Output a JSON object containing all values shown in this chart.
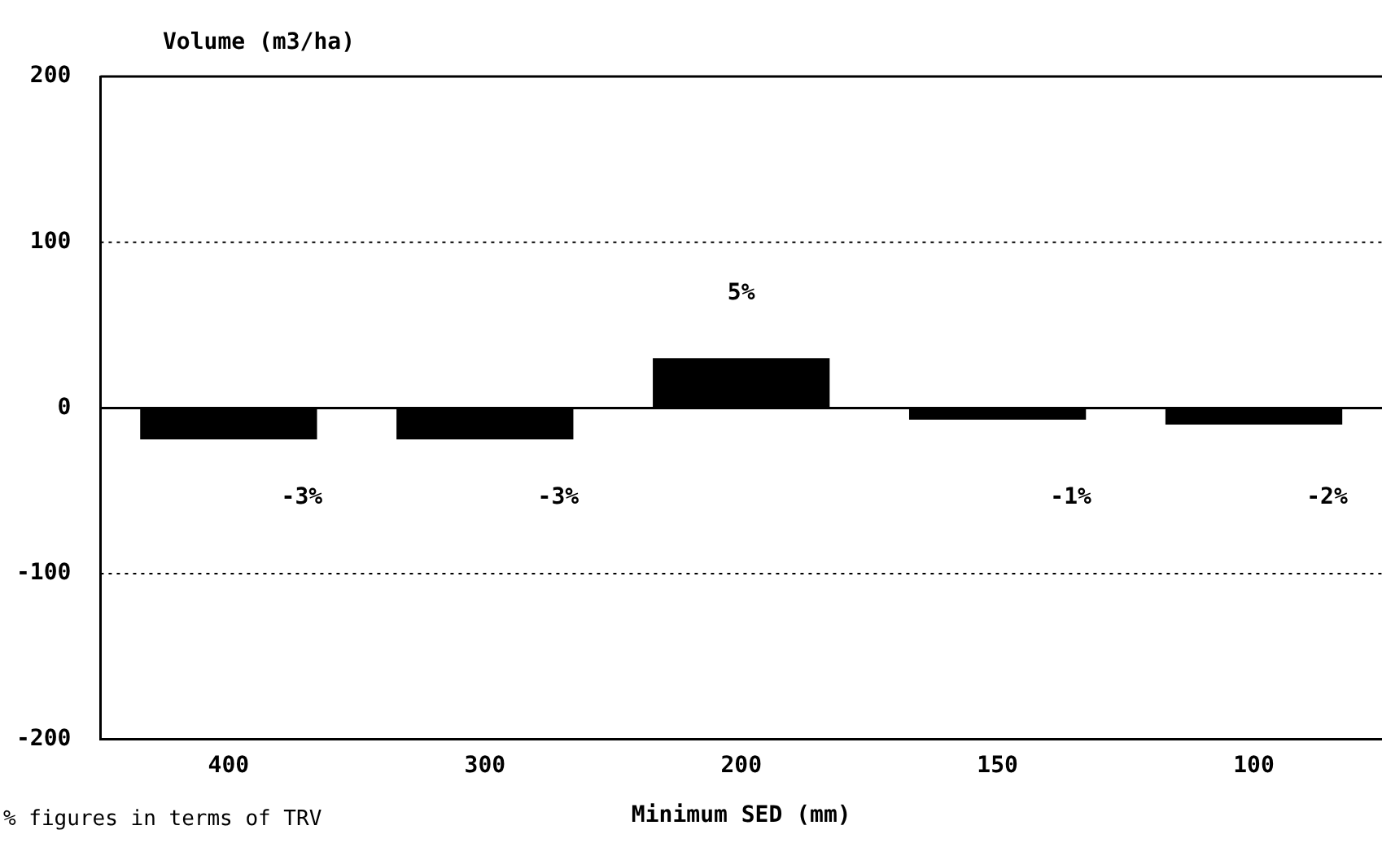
{
  "chart_data": {
    "type": "bar",
    "ylabel": "Volume (m3/ha)",
    "xlabel": "Minimum SED (mm)",
    "categories": [
      "400",
      "300",
      "200",
      "150",
      "100"
    ],
    "values": [
      -19,
      -19,
      30,
      -7,
      -10
    ],
    "color": "#000000",
    "ylim": [
      -200,
      200
    ],
    "yticks": [
      -200,
      -100,
      0,
      100,
      200
    ],
    "grid": "y",
    "annotations": [
      "-3%",
      "-3%",
      "5%",
      "-1%",
      "-2%",
      "% figures in terms of TRV"
    ]
  }
}
